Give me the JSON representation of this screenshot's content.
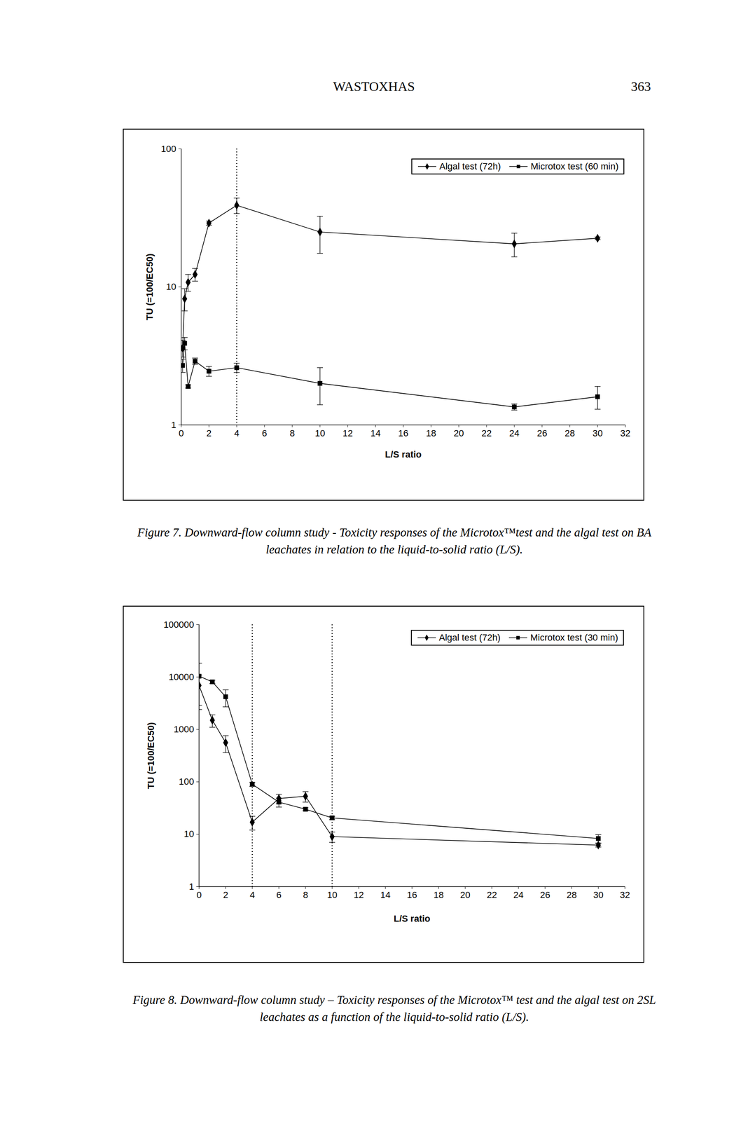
{
  "header": {
    "running_title": "WASTOXHAS",
    "page": 363
  },
  "chart_data": [
    {
      "type": "line",
      "caption": "Figure 7. Downward-flow column study - Toxicity responses of the Microtox™test and the algal test on BA leachates in relation to the liquid-to-solid ratio (L/S).",
      "x_label": "L/S ratio",
      "y_label": "TU (=100/EC50)",
      "log": "y",
      "grid": false,
      "legend": "top-right",
      "xlim": [
        0,
        32
      ],
      "xticks": [
        0,
        2,
        4,
        6,
        8,
        10,
        12,
        14,
        16,
        18,
        20,
        22,
        24,
        26,
        28,
        30,
        32
      ],
      "ylim": [
        1,
        100
      ],
      "yticks": [
        1,
        10,
        100
      ],
      "vlines": [
        4
      ],
      "x": [
        0.1,
        0.25,
        0.5,
        1,
        2,
        4,
        10,
        24,
        30
      ],
      "series": [
        {
          "name": "Algal test (72h)",
          "color": "#000000",
          "marker": "diamond",
          "line_style": "solid",
          "values": [
            3.6,
            8.2,
            10.8,
            12.3,
            29,
            39,
            25,
            20.5,
            22.5
          ],
          "errors": [
            0.5,
            1.5,
            1.5,
            1.3,
            1,
            5,
            7.5,
            4,
            0.5
          ]
        },
        {
          "name": "Microtox test (60 min)",
          "color": "#000000",
          "marker": "square",
          "line_style": "solid",
          "values": [
            2.7,
            3.9,
            1.9,
            2.9,
            2.45,
            2.6,
            2.0,
            1.35,
            1.6
          ],
          "errors": [
            0.3,
            0.4,
            0.05,
            0.15,
            0.2,
            0.2,
            0.6,
            0.07,
            0.3
          ]
        }
      ]
    },
    {
      "type": "line",
      "caption": "Figure 8. Downward-flow column study – Toxicity responses of the Microtox™ test and the algal test on 2SL leachates as a function of the liquid-to-solid ratio (L/S).",
      "x_label": "L/S ratio",
      "y_label": "TU (=100/EC50)",
      "log": "y",
      "grid": false,
      "legend": "top-right",
      "xlim": [
        0,
        32
      ],
      "xticks": [
        0,
        2,
        4,
        6,
        8,
        10,
        12,
        14,
        16,
        18,
        20,
        22,
        24,
        26,
        28,
        30,
        32
      ],
      "ylim": [
        1,
        100000
      ],
      "yticks": [
        1,
        10,
        100,
        1000,
        10000,
        100000
      ],
      "vlines": [
        4,
        10
      ],
      "x": [
        0,
        1,
        2,
        4,
        6,
        8,
        10,
        30
      ],
      "series": [
        {
          "name": "Algal test (72h)",
          "color": "#000000",
          "marker": "diamond",
          "line_style": "solid",
          "values": [
            6900,
            1500,
            560,
            17,
            48,
            53,
            9,
            6.2
          ],
          "errors": [
            4000,
            400,
            200,
            5,
            10,
            12,
            2,
            0.5
          ]
        },
        {
          "name": "Microtox test (30 min)",
          "color": "#000000",
          "marker": "square",
          "line_style": "solid",
          "values": [
            10400,
            8100,
            4200,
            90,
            41,
            30,
            20.5,
            8.3
          ],
          "errors": [
            8000,
            600,
            1500,
            8,
            8,
            2,
            1.5,
            1.5
          ]
        }
      ]
    }
  ]
}
